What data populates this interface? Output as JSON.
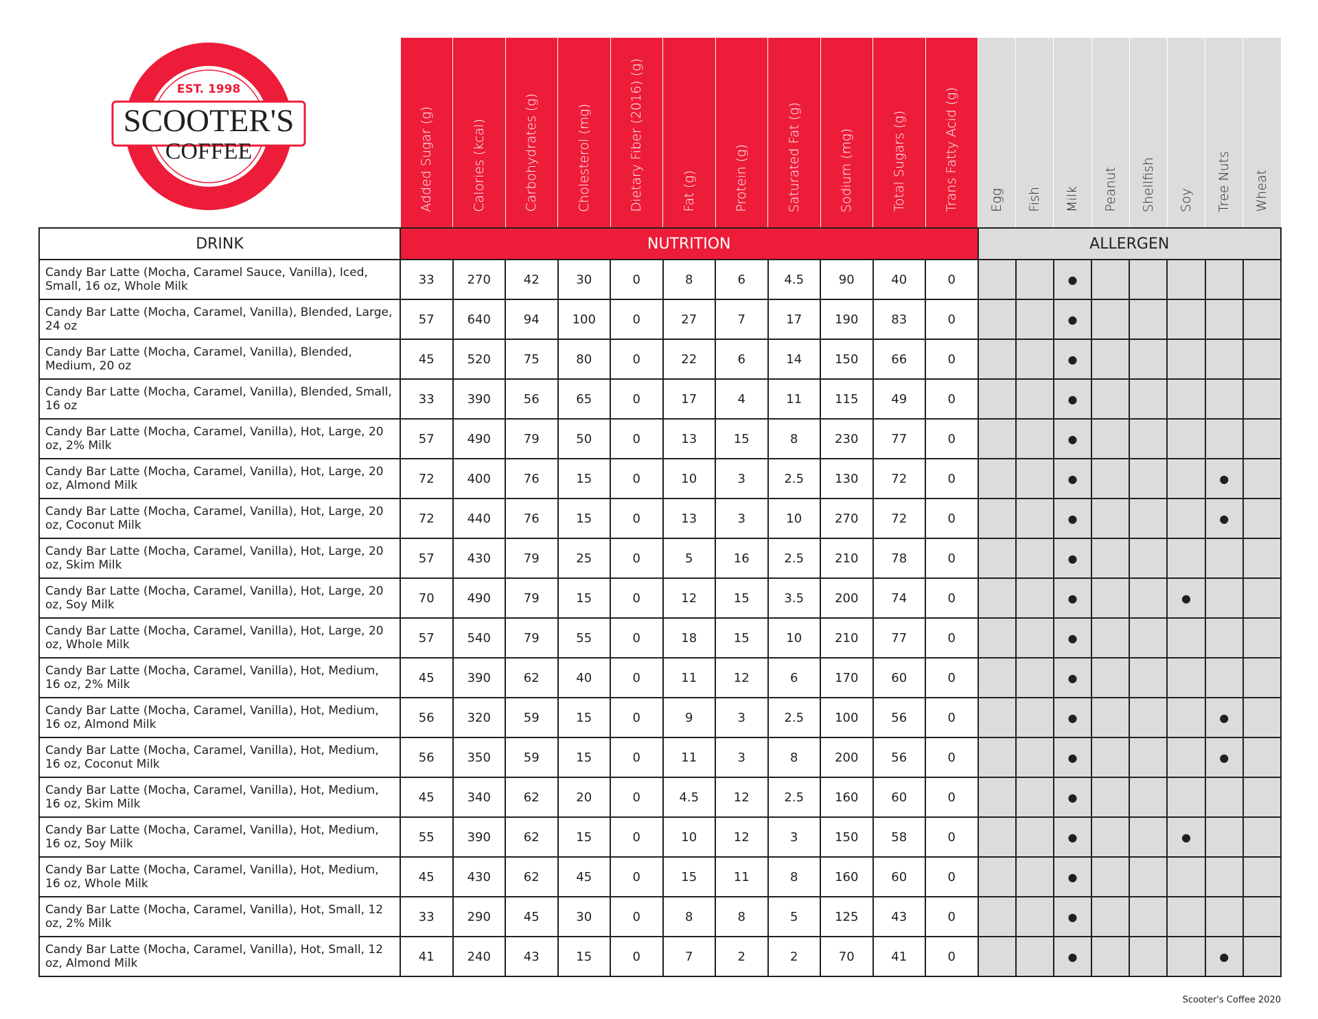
{
  "logo": {
    "est": "EST. 1998",
    "name": "SCOOTER'S",
    "sub": "COFFEE",
    "color": "#ed1c39"
  },
  "sections": {
    "drink": "DRINK",
    "nutrition": "NUTRITION",
    "allergen": "ALLERGEN"
  },
  "nutrition_columns": [
    "Added Sugar (g)",
    "Calories (kcal)",
    "Carbohydrates (g)",
    "Cholesterol (mg)",
    "Dietary Fiber (2016) (g)",
    "Fat (g)",
    "Protein (g)",
    "Saturated Fat (g)",
    "Sodium (mg)",
    "Total Sugars (g)",
    "Trans Fatty Acid (g)"
  ],
  "allergen_columns": [
    "Egg",
    "Fish",
    "Milk",
    "Peanut",
    "Shellfish",
    "Soy",
    "Tree Nuts",
    "Wheat"
  ],
  "allergen_mark": "●",
  "rows": [
    {
      "drink": "Candy Bar Latte (Mocha, Caramel Sauce, Vanilla), Iced, Small, 16 oz, Whole Milk",
      "nutrition": [
        "33",
        "270",
        "42",
        "30",
        "0",
        "8",
        "6",
        "4.5",
        "90",
        "40",
        "0"
      ],
      "allergens": [
        0,
        0,
        1,
        0,
        0,
        0,
        0,
        0
      ]
    },
    {
      "drink": "Candy Bar Latte (Mocha, Caramel, Vanilla), Blended, Large, 24 oz",
      "nutrition": [
        "57",
        "640",
        "94",
        "100",
        "0",
        "27",
        "7",
        "17",
        "190",
        "83",
        "0"
      ],
      "allergens": [
        0,
        0,
        1,
        0,
        0,
        0,
        0,
        0
      ]
    },
    {
      "drink": "Candy Bar Latte (Mocha, Caramel, Vanilla), Blended, Medium, 20 oz",
      "nutrition": [
        "45",
        "520",
        "75",
        "80",
        "0",
        "22",
        "6",
        "14",
        "150",
        "66",
        "0"
      ],
      "allergens": [
        0,
        0,
        1,
        0,
        0,
        0,
        0,
        0
      ]
    },
    {
      "drink": "Candy Bar Latte (Mocha, Caramel, Vanilla), Blended, Small, 16 oz",
      "nutrition": [
        "33",
        "390",
        "56",
        "65",
        "0",
        "17",
        "4",
        "11",
        "115",
        "49",
        "0"
      ],
      "allergens": [
        0,
        0,
        1,
        0,
        0,
        0,
        0,
        0
      ]
    },
    {
      "drink": "Candy Bar Latte (Mocha, Caramel, Vanilla), Hot, Large, 20 oz, 2% Milk",
      "nutrition": [
        "57",
        "490",
        "79",
        "50",
        "0",
        "13",
        "15",
        "8",
        "230",
        "77",
        "0"
      ],
      "allergens": [
        0,
        0,
        1,
        0,
        0,
        0,
        0,
        0
      ]
    },
    {
      "drink": "Candy Bar Latte (Mocha, Caramel, Vanilla), Hot, Large, 20 oz, Almond Milk",
      "nutrition": [
        "72",
        "400",
        "76",
        "15",
        "0",
        "10",
        "3",
        "2.5",
        "130",
        "72",
        "0"
      ],
      "allergens": [
        0,
        0,
        1,
        0,
        0,
        0,
        1,
        0
      ]
    },
    {
      "drink": "Candy Bar Latte (Mocha, Caramel, Vanilla), Hot, Large, 20 oz, Coconut Milk",
      "nutrition": [
        "72",
        "440",
        "76",
        "15",
        "0",
        "13",
        "3",
        "10",
        "270",
        "72",
        "0"
      ],
      "allergens": [
        0,
        0,
        1,
        0,
        0,
        0,
        1,
        0
      ]
    },
    {
      "drink": "Candy Bar Latte (Mocha, Caramel, Vanilla), Hot, Large, 20 oz, Skim Milk",
      "nutrition": [
        "57",
        "430",
        "79",
        "25",
        "0",
        "5",
        "16",
        "2.5",
        "210",
        "78",
        "0"
      ],
      "allergens": [
        0,
        0,
        1,
        0,
        0,
        0,
        0,
        0
      ]
    },
    {
      "drink": "Candy Bar Latte (Mocha, Caramel, Vanilla), Hot, Large, 20 oz, Soy Milk",
      "nutrition": [
        "70",
        "490",
        "79",
        "15",
        "0",
        "12",
        "15",
        "3.5",
        "200",
        "74",
        "0"
      ],
      "allergens": [
        0,
        0,
        1,
        0,
        0,
        1,
        0,
        0
      ]
    },
    {
      "drink": "Candy Bar Latte (Mocha, Caramel, Vanilla), Hot, Large, 20 oz, Whole Milk",
      "nutrition": [
        "57",
        "540",
        "79",
        "55",
        "0",
        "18",
        "15",
        "10",
        "210",
        "77",
        "0"
      ],
      "allergens": [
        0,
        0,
        1,
        0,
        0,
        0,
        0,
        0
      ]
    },
    {
      "drink": "Candy Bar Latte (Mocha, Caramel, Vanilla), Hot, Medium, 16 oz, 2% Milk",
      "nutrition": [
        "45",
        "390",
        "62",
        "40",
        "0",
        "11",
        "12",
        "6",
        "170",
        "60",
        "0"
      ],
      "allergens": [
        0,
        0,
        1,
        0,
        0,
        0,
        0,
        0
      ]
    },
    {
      "drink": "Candy Bar Latte (Mocha, Caramel, Vanilla), Hot, Medium, 16 oz, Almond Milk",
      "nutrition": [
        "56",
        "320",
        "59",
        "15",
        "0",
        "9",
        "3",
        "2.5",
        "100",
        "56",
        "0"
      ],
      "allergens": [
        0,
        0,
        1,
        0,
        0,
        0,
        1,
        0
      ]
    },
    {
      "drink": "Candy Bar Latte (Mocha, Caramel, Vanilla), Hot, Medium, 16 oz, Coconut Milk",
      "nutrition": [
        "56",
        "350",
        "59",
        "15",
        "0",
        "11",
        "3",
        "8",
        "200",
        "56",
        "0"
      ],
      "allergens": [
        0,
        0,
        1,
        0,
        0,
        0,
        1,
        0
      ]
    },
    {
      "drink": "Candy Bar Latte (Mocha, Caramel, Vanilla), Hot, Medium, 16 oz, Skim Milk",
      "nutrition": [
        "45",
        "340",
        "62",
        "20",
        "0",
        "4.5",
        "12",
        "2.5",
        "160",
        "60",
        "0"
      ],
      "allergens": [
        0,
        0,
        1,
        0,
        0,
        0,
        0,
        0
      ]
    },
    {
      "drink": "Candy Bar Latte (Mocha, Caramel, Vanilla), Hot, Medium, 16 oz, Soy Milk",
      "nutrition": [
        "55",
        "390",
        "62",
        "15",
        "0",
        "10",
        "12",
        "3",
        "150",
        "58",
        "0"
      ],
      "allergens": [
        0,
        0,
        1,
        0,
        0,
        1,
        0,
        0
      ]
    },
    {
      "drink": "Candy Bar Latte (Mocha, Caramel, Vanilla), Hot, Medium, 16 oz, Whole Milk",
      "nutrition": [
        "45",
        "430",
        "62",
        "45",
        "0",
        "15",
        "11",
        "8",
        "160",
        "60",
        "0"
      ],
      "allergens": [
        0,
        0,
        1,
        0,
        0,
        0,
        0,
        0
      ]
    },
    {
      "drink": "Candy Bar Latte (Mocha, Caramel, Vanilla), Hot, Small, 12 oz, 2% Milk",
      "nutrition": [
        "33",
        "290",
        "45",
        "30",
        "0",
        "8",
        "8",
        "5",
        "125",
        "43",
        "0"
      ],
      "allergens": [
        0,
        0,
        1,
        0,
        0,
        0,
        0,
        0
      ]
    },
    {
      "drink": "Candy Bar Latte (Mocha, Caramel, Vanilla), Hot, Small, 12 oz, Almond Milk",
      "nutrition": [
        "41",
        "240",
        "43",
        "15",
        "0",
        "7",
        "2",
        "2",
        "70",
        "41",
        "0"
      ],
      "allergens": [
        0,
        0,
        1,
        0,
        0,
        0,
        1,
        0
      ]
    }
  ],
  "footer": "Scooter's Coffee 2020"
}
